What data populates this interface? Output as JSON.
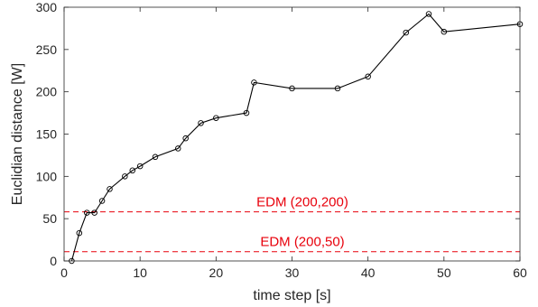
{
  "chart_data": {
    "type": "line",
    "xlabel": "time step [s]",
    "ylabel": "Euclidian distance [W]",
    "xlim": [
      0,
      60
    ],
    "ylim": [
      0,
      300
    ],
    "xticks": [
      0,
      10,
      20,
      30,
      40,
      50,
      60
    ],
    "yticks": [
      0,
      50,
      100,
      150,
      200,
      250,
      300
    ],
    "grid": false,
    "series": [
      {
        "color": "#000000",
        "marker": "circle",
        "x": [
          1,
          2,
          3,
          4,
          5,
          6,
          8,
          9,
          10,
          12,
          15,
          16,
          18,
          20,
          24,
          25,
          30,
          36,
          40,
          45,
          48,
          50,
          60
        ],
        "y": [
          0,
          33,
          57,
          57,
          71,
          85,
          100,
          107,
          112,
          123,
          133,
          145,
          163,
          169,
          175,
          211,
          204,
          204,
          218,
          270,
          292,
          271,
          280
        ]
      }
    ],
    "reference_lines": [
      {
        "label": "EDM (200,200)",
        "y": 58,
        "color": "#e8000b",
        "style": "dashed"
      },
      {
        "label": "EDM (200,50)",
        "y": 11,
        "color": "#e8000b",
        "style": "dashed"
      }
    ]
  }
}
